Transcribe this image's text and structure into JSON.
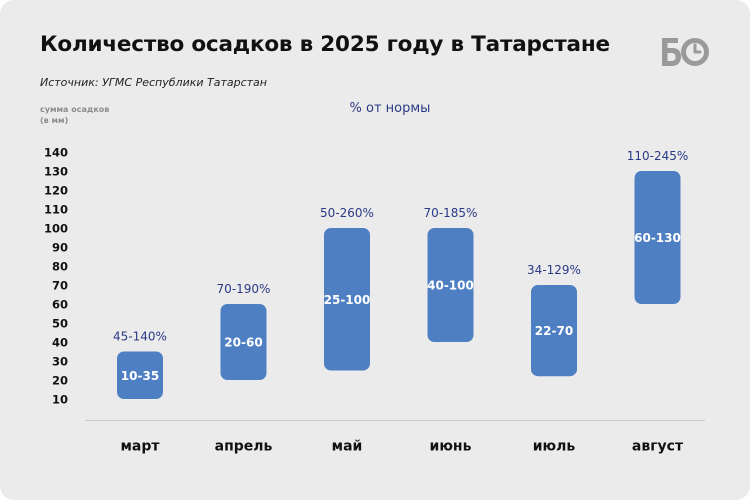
{
  "header": {
    "title": "Количество осадков в 2025 году в Татарстане",
    "source": "Источник: УГМС Республики Татарстан",
    "logo_text": "БО"
  },
  "colors": {
    "background": "#ebebeb",
    "bar": "#4f7fc3",
    "bar_label": "#ffffff",
    "percent_label": "#2b3a86",
    "axis_text": "#111111",
    "axis_title": "#8c8c8c",
    "logo": "#9a9a9a"
  },
  "chart_data": {
    "type": "bar",
    "subtype": "floating-range",
    "ylabel": [
      "сумма осадков",
      "(в мм)"
    ],
    "series_title": "% от нормы",
    "ylim": [
      5,
      150
    ],
    "yticks": [
      10,
      20,
      30,
      40,
      50,
      60,
      70,
      80,
      90,
      100,
      110,
      120,
      130,
      140
    ],
    "grid": false,
    "categories": [
      "март",
      "апрель",
      "май",
      "июнь",
      "июль",
      "август"
    ],
    "ranges": [
      [
        10,
        35
      ],
      [
        20,
        60
      ],
      [
        25,
        100
      ],
      [
        40,
        100
      ],
      [
        22,
        70
      ],
      [
        60,
        130
      ]
    ],
    "range_labels": [
      "10-35",
      "20-60",
      "25-100",
      "40-100",
      "22-70",
      "60-130"
    ],
    "percent_labels": [
      "45-140%",
      "70-190%",
      "50-260%",
      "70-185%",
      "34-129%",
      "110-245%"
    ]
  }
}
